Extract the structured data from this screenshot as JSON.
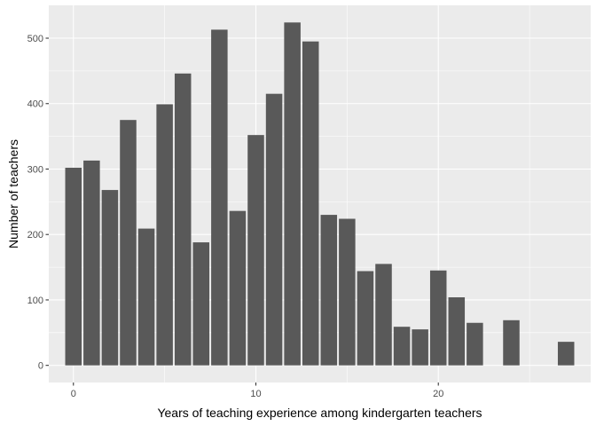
{
  "chart_data": {
    "type": "bar",
    "title": "",
    "xlabel": "Years of teaching experience among kindergarten teachers",
    "ylabel": "Number of teachers",
    "x": [
      0,
      1,
      2,
      3,
      4,
      5,
      6,
      7,
      8,
      9,
      10,
      11,
      12,
      13,
      14,
      15,
      16,
      17,
      18,
      19,
      20,
      21,
      22,
      24,
      27
    ],
    "values": [
      302,
      313,
      268,
      375,
      209,
      399,
      446,
      188,
      513,
      236,
      352,
      415,
      524,
      495,
      230,
      224,
      144,
      155,
      59,
      55,
      145,
      104,
      65,
      69,
      36
    ],
    "xlim": [
      -1.35,
      28.35
    ],
    "ylim": [
      -26.2,
      550.2
    ],
    "x_ticks": [
      "0",
      "10",
      "20"
    ],
    "y_ticks": [
      "0",
      "100",
      "200",
      "300",
      "400",
      "500"
    ],
    "grid": true,
    "bar_color": "#595959",
    "panel_color": "#EBEBEB",
    "grid_color": "#FFFFFF"
  }
}
